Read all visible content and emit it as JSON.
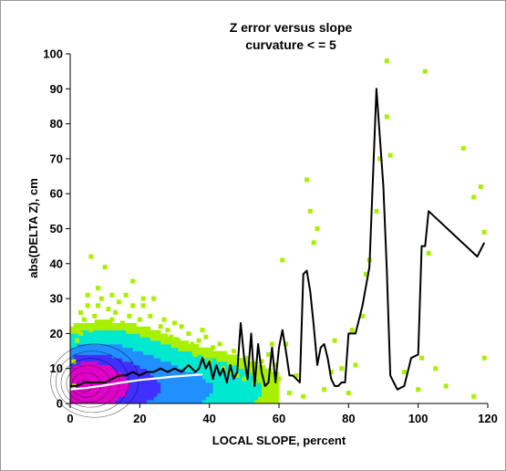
{
  "chart_data": {
    "type": "heatmap",
    "title": "Z error versus slope",
    "subtitle": "curvature < = 5",
    "xlabel": "LOCAL SLOPE, percent",
    "ylabel": "abs(DELTA Z), cm",
    "xlim": [
      0,
      120
    ],
    "ylim": [
      0,
      100
    ],
    "xticks": [
      "0",
      "20",
      "40",
      "60",
      "80",
      "100",
      "120"
    ],
    "yticks": [
      "0",
      "10",
      "20",
      "30",
      "40",
      "50",
      "60",
      "70",
      "80",
      "90",
      "100"
    ],
    "grid": false,
    "legend": "none",
    "colors": {
      "outlier": "#a8f000",
      "sparse": "#00e8d0",
      "medium": "#2090ff",
      "dense": "#4030ff",
      "peak": "#e000c8",
      "mean_line": "#000000",
      "median_line": "#ffffff"
    },
    "density_clusters": [
      {
        "x": 4,
        "y": 5,
        "sx": 6,
        "sy": 5,
        "weight": 1.0
      },
      {
        "x": 10,
        "y": 6,
        "sx": 10,
        "sy": 7,
        "weight": 0.55
      },
      {
        "x": 22,
        "y": 4,
        "sx": 14,
        "sy": 6,
        "weight": 0.25
      },
      {
        "x": 38,
        "y": 4,
        "sx": 14,
        "sy": 5,
        "weight": 0.1
      }
    ],
    "contour_levels": [
      1.6,
      1.2,
      0.85,
      0.55,
      0.32,
      0.18
    ],
    "outliers": [
      [
        1,
        5
      ],
      [
        1,
        12
      ],
      [
        2,
        18
      ],
      [
        2,
        22
      ],
      [
        3,
        20
      ],
      [
        3,
        26
      ],
      [
        4,
        24
      ],
      [
        5,
        28
      ],
      [
        5,
        31
      ],
      [
        6,
        21
      ],
      [
        6,
        42
      ],
      [
        7,
        25
      ],
      [
        8,
        28
      ],
      [
        8,
        33
      ],
      [
        9,
        30
      ],
      [
        10,
        22
      ],
      [
        10,
        39
      ],
      [
        11,
        27
      ],
      [
        12,
        24
      ],
      [
        12,
        31
      ],
      [
        13,
        26
      ],
      [
        14,
        29
      ],
      [
        15,
        23
      ],
      [
        16,
        22
      ],
      [
        16,
        31
      ],
      [
        17,
        25
      ],
      [
        18,
        28
      ],
      [
        18,
        35
      ],
      [
        19,
        21
      ],
      [
        20,
        24
      ],
      [
        21,
        28
      ],
      [
        21,
        30
      ],
      [
        22,
        20
      ],
      [
        23,
        25
      ],
      [
        24,
        30
      ],
      [
        25,
        20
      ],
      [
        26,
        22
      ],
      [
        27,
        24
      ],
      [
        28,
        21
      ],
      [
        29,
        19
      ],
      [
        30,
        23
      ],
      [
        31,
        18
      ],
      [
        32,
        22
      ],
      [
        33,
        16
      ],
      [
        34,
        20
      ],
      [
        35,
        17
      ],
      [
        36,
        14
      ],
      [
        37,
        18
      ],
      [
        38,
        21
      ],
      [
        39,
        19
      ],
      [
        40,
        12
      ],
      [
        41,
        16
      ],
      [
        42,
        14
      ],
      [
        43,
        17
      ],
      [
        44,
        10
      ],
      [
        45,
        13
      ],
      [
        46,
        9
      ],
      [
        47,
        15
      ],
      [
        48,
        8
      ],
      [
        49,
        11
      ],
      [
        50,
        7
      ],
      [
        51,
        13
      ],
      [
        52,
        10
      ],
      [
        53,
        6
      ],
      [
        54,
        8
      ],
      [
        55,
        12
      ],
      [
        56,
        9
      ],
      [
        57,
        14
      ],
      [
        57,
        5
      ],
      [
        58,
        17
      ],
      [
        59,
        11
      ],
      [
        60,
        7
      ],
      [
        61,
        41
      ],
      [
        62,
        17
      ],
      [
        63,
        3
      ],
      [
        65,
        8
      ],
      [
        67,
        2
      ],
      [
        68,
        64
      ],
      [
        69,
        55
      ],
      [
        70,
        46
      ],
      [
        71,
        50
      ],
      [
        73,
        4
      ],
      [
        75,
        9
      ],
      [
        76,
        18
      ],
      [
        78,
        10
      ],
      [
        80,
        3
      ],
      [
        81,
        21
      ],
      [
        82,
        11
      ],
      [
        84,
        25
      ],
      [
        85,
        37
      ],
      [
        86,
        41
      ],
      [
        88,
        55
      ],
      [
        89,
        70
      ],
      [
        91,
        98
      ],
      [
        91,
        82
      ],
      [
        92,
        71
      ],
      [
        96,
        9
      ],
      [
        100,
        4
      ],
      [
        101,
        13
      ],
      [
        102,
        95
      ],
      [
        103,
        43
      ],
      [
        105,
        10
      ],
      [
        108,
        5
      ],
      [
        113,
        73
      ],
      [
        116,
        59
      ],
      [
        116,
        2
      ],
      [
        118,
        62
      ],
      [
        119,
        49
      ],
      [
        119,
        13
      ]
    ],
    "series": [
      {
        "name": "",
        "color": "#000000",
        "x": [
          0,
          2,
          4,
          6,
          8,
          10,
          12,
          14,
          16,
          18,
          20,
          22,
          24,
          26,
          28,
          30,
          32,
          34,
          36,
          37,
          38,
          39,
          40,
          41,
          42,
          43,
          44,
          45,
          46,
          47,
          48,
          49,
          50,
          51,
          52,
          53,
          54,
          55,
          56,
          57,
          58,
          59,
          60,
          61,
          62,
          63,
          64,
          65,
          66,
          67,
          68,
          69,
          70,
          71,
          72,
          73,
          74,
          75,
          76,
          77,
          78,
          79,
          80,
          82,
          84,
          86,
          88,
          90,
          91,
          92,
          94,
          96,
          98,
          100,
          101,
          102,
          103,
          117,
          119
        ],
        "y": [
          5,
          5,
          6,
          6,
          6,
          6,
          7,
          8,
          8,
          9,
          8,
          9,
          9,
          10,
          9,
          10,
          9,
          11,
          9,
          10,
          13,
          10,
          12,
          7,
          11,
          8,
          10,
          6,
          11,
          7,
          9,
          23,
          13,
          7,
          20,
          5,
          17,
          9,
          5,
          6,
          16,
          6,
          16,
          21,
          15,
          8,
          8,
          7,
          6,
          37,
          38,
          32,
          22,
          11,
          16,
          17,
          13,
          7,
          5,
          5,
          6,
          6,
          20,
          20,
          28,
          39,
          90,
          62,
          38,
          8,
          4,
          5,
          13,
          14,
          45,
          45,
          55,
          42,
          46
        ]
      },
      {
        "name": "",
        "color": "#ffffff",
        "x": [
          0,
          5,
          10,
          15,
          20,
          25,
          30,
          35,
          38
        ],
        "y": [
          4,
          4.5,
          5.2,
          6,
          6.7,
          7.2,
          7.7,
          8.1,
          8.3
        ]
      }
    ]
  }
}
